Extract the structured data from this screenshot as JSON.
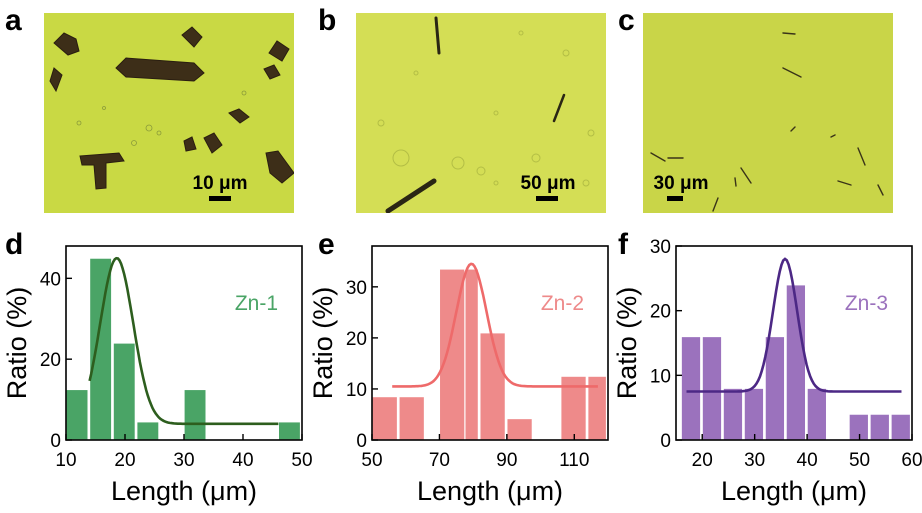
{
  "panels": {
    "a": "a",
    "b": "b",
    "c": "c",
    "d": "d",
    "e": "e",
    "f": "f"
  },
  "micrographs": [
    {
      "id": "a",
      "scale_bar_label": "10 μm",
      "background": "#c9d944"
    },
    {
      "id": "b",
      "scale_bar_label": "50 μm",
      "background": "#d4de55"
    },
    {
      "id": "c",
      "scale_bar_label": "30 μm",
      "background": "#c9d548"
    }
  ],
  "colors": {
    "zn1": "#4aa466",
    "zn1_line": "#2d5e1e",
    "zn2": "#ee8a8a",
    "zn2_line": "#ee6a6a",
    "zn3": "#9b72bd",
    "zn3_line": "#4c2885"
  },
  "chart_data": [
    {
      "type": "bar",
      "panel": "d",
      "series_name": "Zn-1",
      "xlabel": "Length (μm)",
      "ylabel": "Ratio (%)",
      "xlim": [
        10,
        50
      ],
      "ylim": [
        0,
        48
      ],
      "xticks": [
        10,
        20,
        30,
        40,
        50
      ],
      "yticks": [
        0,
        20,
        40
      ],
      "bin_width": 4,
      "bins_x": [
        12,
        16,
        20,
        24,
        28,
        32,
        36,
        40,
        44,
        48
      ],
      "values": [
        12.5,
        45,
        24,
        4.5,
        0,
        12.5,
        0,
        0,
        0,
        4.5
      ],
      "fit": {
        "x0": 18.6,
        "sigma": 2.8,
        "amplitude": 41,
        "baseline": 4,
        "x_start": 14,
        "x_end": 46
      }
    },
    {
      "type": "bar",
      "panel": "e",
      "series_name": "Zn-2",
      "xlabel": "Length (μm)",
      "ylabel": "Ratio (%)",
      "xlim": [
        50,
        120
      ],
      "ylim": [
        0,
        38
      ],
      "xticks": [
        50,
        70,
        90,
        110
      ],
      "yticks": [
        0,
        10,
        20,
        30
      ],
      "bin_width": 8,
      "bins_x": [
        54,
        62,
        70,
        78,
        86,
        94,
        102,
        110,
        118
      ],
      "values": [
        8.5,
        8.5,
        0,
        33.5,
        21,
        4.2,
        0,
        12.5,
        12.5
      ],
      "extra_bins": [
        {
          "x": 74,
          "value": 33.5
        }
      ],
      "fit": {
        "x0": 79.5,
        "sigma": 4.5,
        "amplitude": 24,
        "baseline": 10.5,
        "x_start": 56,
        "x_end": 117
      }
    },
    {
      "type": "bar",
      "panel": "f",
      "series_name": "Zn-3",
      "xlabel": "Length (μm)",
      "ylabel": "Ratio (%)",
      "xlim": [
        15,
        60
      ],
      "ylim": [
        0,
        30
      ],
      "xticks": [
        20,
        30,
        40,
        50,
        60
      ],
      "yticks": [
        0,
        10,
        20,
        30
      ],
      "bin_width": 4,
      "bins_x": [
        18,
        22,
        26,
        30,
        34,
        38,
        42,
        46,
        50,
        54,
        58
      ],
      "values": [
        16,
        16,
        8,
        0,
        16,
        24,
        8,
        0,
        4,
        4,
        4
      ],
      "extra_bins": [
        {
          "x": 30,
          "value": 8
        }
      ],
      "fit": {
        "x0": 35.8,
        "sigma": 2.3,
        "amplitude": 20.5,
        "baseline": 7.5,
        "x_start": 17,
        "x_end": 58
      }
    }
  ]
}
